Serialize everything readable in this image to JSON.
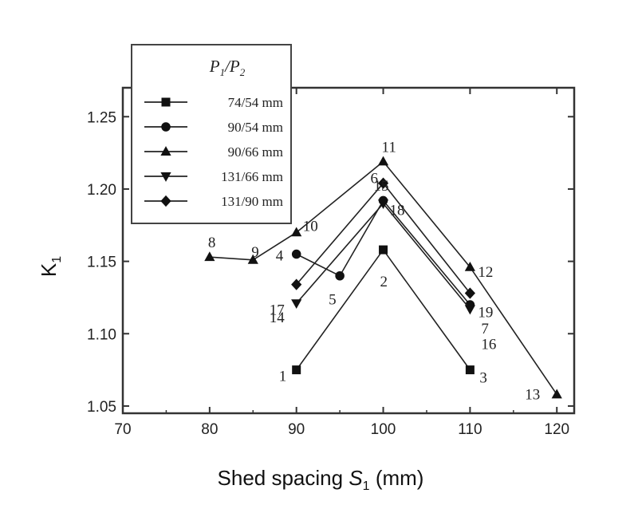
{
  "chart_data": {
    "type": "line",
    "xlabel": "Shed spacing",
    "xlabel_symbol": "S",
    "xlabel_sub": "1",
    "xlabel_unit": "(mm)",
    "ylabel": "K",
    "ylabel_sub": "1",
    "xlim": [
      70,
      122
    ],
    "ylim": [
      1.045,
      1.27
    ],
    "xticks": [
      "70",
      "80",
      "90",
      "100",
      "110",
      "120"
    ],
    "xtick_values": [
      70,
      80,
      90,
      100,
      110,
      120
    ],
    "yticks": [
      "1.05",
      "1.10",
      "1.15",
      "1.20",
      "1.25"
    ],
    "ytick_values": [
      1.05,
      1.1,
      1.15,
      1.2,
      1.25
    ],
    "legend": {
      "title_a": "P",
      "title_a_sub": "1",
      "title_sep": "/",
      "title_b": "P",
      "title_b_sub": "2",
      "placement": "top-left"
    },
    "series": [
      {
        "name": "74/54 mm",
        "marker": "square",
        "points": [
          {
            "x": 90,
            "y": 1.075,
            "label": "1"
          },
          {
            "x": 100,
            "y": 1.158,
            "label": "2"
          },
          {
            "x": 110,
            "y": 1.075,
            "label": "3"
          }
        ]
      },
      {
        "name": "90/54 mm",
        "marker": "circle",
        "points": [
          {
            "x": 90,
            "y": 1.155,
            "label": "4"
          },
          {
            "x": 95,
            "y": 1.14,
            "label": "5"
          },
          {
            "x": 100,
            "y": 1.192,
            "label": "6"
          },
          {
            "x": 110,
            "y": 1.12,
            "label": "7"
          }
        ]
      },
      {
        "name": "90/66 mm",
        "marker": "triangle-up",
        "points": [
          {
            "x": 80,
            "y": 1.153,
            "label": "8"
          },
          {
            "x": 85,
            "y": 1.151,
            "label": "9"
          },
          {
            "x": 90,
            "y": 1.17,
            "label": "10"
          },
          {
            "x": 100,
            "y": 1.219,
            "label": "11"
          },
          {
            "x": 110,
            "y": 1.146,
            "label": "12"
          },
          {
            "x": 120,
            "y": 1.058,
            "label": "13"
          }
        ]
      },
      {
        "name": "131/66 mm",
        "marker": "triangle-down",
        "points": [
          {
            "x": 90,
            "y": 1.121,
            "label": "14"
          },
          {
            "x": 100,
            "y": 1.19,
            "label": "15"
          },
          {
            "x": 110,
            "y": 1.117,
            "label": "16"
          }
        ]
      },
      {
        "name": "131/90 mm",
        "marker": "diamond",
        "points": [
          {
            "x": 90,
            "y": 1.134,
            "label": "17"
          },
          {
            "x": 100,
            "y": 1.204,
            "label": "18"
          },
          {
            "x": 110,
            "y": 1.128,
            "label": "19"
          }
        ]
      }
    ]
  }
}
